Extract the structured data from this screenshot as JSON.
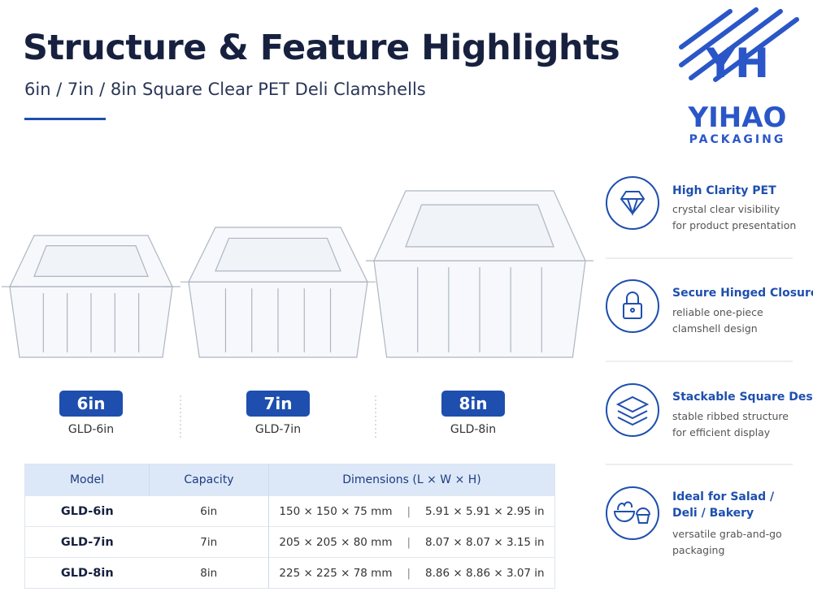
{
  "header": {
    "title": "Structure & Feature Highlights",
    "subtitle": "6in / 7in / 8in Square Clear PET Deli Clamshells"
  },
  "logo": {
    "name": "YIHAO",
    "tagline": "PACKAGING"
  },
  "products": [
    {
      "label": "6in",
      "model": "GLD-6in"
    },
    {
      "label": "7in",
      "model": "GLD-7in"
    },
    {
      "label": "8in",
      "model": "GLD-8in"
    }
  ],
  "table": {
    "header": [
      "Model",
      "Capacity",
      "Dimensions (L × W × H)"
    ],
    "rows": [
      [
        "GLD-6in",
        "6in",
        "150 × 150 × 75 mm",
        "5.91 × 5.91 × 2.95 in"
      ],
      [
        "GLD-7in",
        "7in",
        "205 × 205 × 80 mm",
        "8.07 × 8.07 × 3.15 in"
      ],
      [
        "GLD-8in",
        "8in",
        "225 × 225 × 78 mm",
        "8.86 × 8.86 × 3.07 in"
      ]
    ]
  },
  "features": [
    {
      "title": "High Clarity PET",
      "lines": [
        "crystal clear visibility",
        "for product presentation"
      ]
    },
    {
      "title": "Secure Hinged Closure",
      "lines": [
        "reliable one-piece",
        "clamshell design"
      ]
    },
    {
      "title": "Stackable Square Design",
      "lines": [
        "stable ribbed structure",
        "for efficient display"
      ]
    },
    {
      "title": "Ideal for Salad /",
      "title2": "Deli / Bakery",
      "lines": [
        "versatile grab-and-go",
        "packaging"
      ]
    }
  ]
}
